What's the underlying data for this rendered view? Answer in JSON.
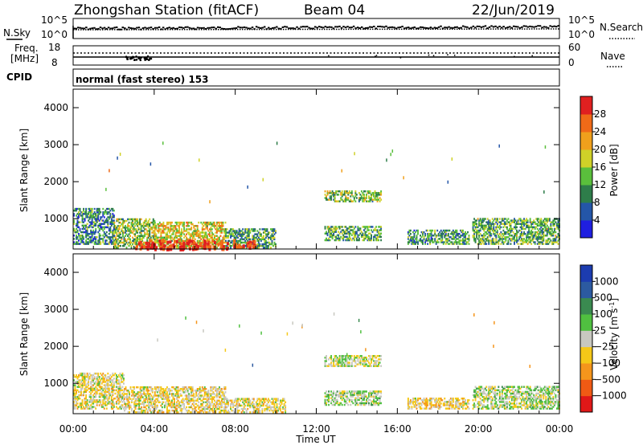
{
  "header": {
    "station": "Zhongshan Station (fitACF)",
    "beam": "Beam 04",
    "date": "22/Jun/2019"
  },
  "noise_panel": {
    "left_label": "N.Sky",
    "right_label": "N.Search",
    "left_ticks": [
      "10^5",
      "10^0"
    ],
    "right_ticks": [
      "10^5",
      "10^0"
    ]
  },
  "freq_panel": {
    "left_label_1": "Freq.",
    "left_label_2": "[MHz]",
    "right_label": "Nave",
    "left_ticks": [
      "18",
      "8"
    ],
    "right_ticks": [
      "60",
      "0"
    ]
  },
  "cpid": {
    "label": "CPID",
    "mode": "normal (fast stereo) 153"
  },
  "axes": {
    "ylabel": "Slant Range [km]",
    "xlabel": "Time UT",
    "y_ticks": [
      "4000",
      "3000",
      "2000",
      "1000"
    ],
    "x_ticks": [
      "00:00",
      "04:00",
      "08:00",
      "12:00",
      "16:00",
      "20:00",
      "00:00"
    ]
  },
  "power_scale": {
    "label": "Power [dB]",
    "ticks": [
      "28",
      "24",
      "20",
      "16",
      "12",
      "8",
      "4"
    ],
    "colors": [
      "#1f1fe0",
      "#2456a8",
      "#2e7d4a",
      "#5abf3c",
      "#cfd128",
      "#f0a01c",
      "#f06a18",
      "#e02020"
    ]
  },
  "velocity_scale": {
    "label": "Velocity [m s",
    "label_sup": "-1",
    "label_end": "]",
    "ticks": [
      "1000",
      "500",
      "100",
      "25",
      "−25",
      "−100",
      "−500",
      "−1000"
    ],
    "colors": [
      "#e01818",
      "#f05a14",
      "#f5951c",
      "#f5c818",
      "#c8c8c0",
      "#50c040",
      "#3a8a50",
      "#2c5aa0",
      "#1c3cb0"
    ]
  },
  "chart_data": [
    {
      "type": "heatmap",
      "title": "Power [dB]",
      "xlabel": "Time UT",
      "ylabel": "Slant Range [km]",
      "xlim": [
        "00:00",
        "24:00"
      ],
      "ylim": [
        180,
        4500
      ],
      "clim": [
        0,
        30
      ],
      "regions": [
        {
          "t": [
            0.0,
            2.0
          ],
          "range": [
            300,
            1250
          ],
          "value": 9
        },
        {
          "t": [
            2.0,
            4.0
          ],
          "range": [
            200,
            1000
          ],
          "value": 14
        },
        {
          "t": [
            4.0,
            7.5
          ],
          "range": [
            200,
            900
          ],
          "value": 18
        },
        {
          "t": [
            7.5,
            10.0
          ],
          "range": [
            200,
            700
          ],
          "value": 11
        },
        {
          "t": [
            12.4,
            15.2
          ],
          "range": [
            1450,
            1750
          ],
          "value": 14
        },
        {
          "t": [
            12.4,
            15.2
          ],
          "range": [
            400,
            800
          ],
          "value": 12
        },
        {
          "t": [
            16.5,
            19.5
          ],
          "range": [
            300,
            700
          ],
          "value": 10
        },
        {
          "t": [
            19.7,
            24.0
          ],
          "range": [
            300,
            1000
          ],
          "value": 12
        }
      ]
    },
    {
      "type": "heatmap",
      "title": "Velocity [m s-1]",
      "xlabel": "Time UT",
      "ylabel": "Slant Range [km]",
      "xlim": [
        "00:00",
        "24:00"
      ],
      "ylim": [
        180,
        4500
      ],
      "clim": [
        -1000,
        1000
      ],
      "regions": [
        {
          "t": [
            0.0,
            2.5
          ],
          "range": [
            300,
            1250
          ],
          "value": -80
        },
        {
          "t": [
            2.5,
            7.5
          ],
          "range": [
            200,
            900
          ],
          "value": -120
        },
        {
          "t": [
            7.5,
            10.5
          ],
          "range": [
            200,
            600
          ],
          "value": -100
        },
        {
          "t": [
            12.4,
            15.2
          ],
          "range": [
            1450,
            1750
          ],
          "value": 0
        },
        {
          "t": [
            12.4,
            15.2
          ],
          "range": [
            400,
            800
          ],
          "value": 80
        },
        {
          "t": [
            16.5,
            19.5
          ],
          "range": [
            300,
            600
          ],
          "value": -150
        },
        {
          "t": [
            19.7,
            24.0
          ],
          "range": [
            300,
            900
          ],
          "value": 60
        }
      ]
    }
  ]
}
